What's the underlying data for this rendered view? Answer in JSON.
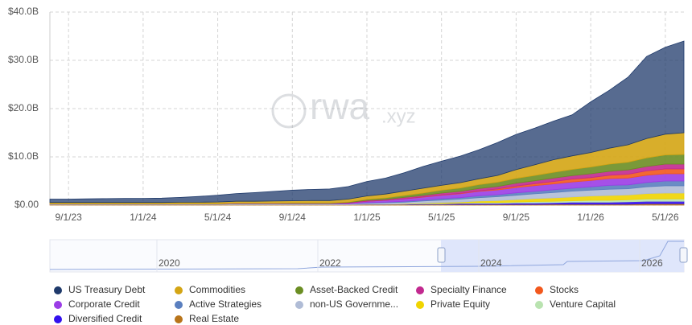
{
  "chart_data": {
    "type": "stacked_area",
    "watermark": "rwa",
    "watermark_suffix": ".xyz",
    "x": [
      "8/1/23",
      "9/1/23",
      "10/1/23",
      "11/1/23",
      "12/1/23",
      "1/1/24",
      "2/1/24",
      "3/1/24",
      "4/1/24",
      "5/1/24",
      "6/1/24",
      "7/1/24",
      "8/1/24",
      "9/1/24",
      "10/1/24",
      "11/1/24",
      "12/1/24",
      "1/1/25",
      "2/1/25",
      "3/1/25",
      "4/1/25",
      "5/1/25",
      "6/1/25",
      "7/1/25",
      "8/1/25",
      "9/1/25",
      "10/1/25",
      "11/1/25",
      "12/1/25",
      "1/1/26",
      "2/1/26",
      "3/1/26",
      "4/1/26",
      "5/1/26",
      "6/1/26"
    ],
    "xticks": [
      "9/1/23",
      "1/1/24",
      "5/1/24",
      "9/1/24",
      "1/1/25",
      "5/1/25",
      "9/1/25",
      "1/1/26",
      "5/1/26"
    ],
    "ylim": [
      0,
      40
    ],
    "yticks": [
      {
        "value": 0,
        "label": "$0.00"
      },
      {
        "value": 10,
        "label": "$10.0B"
      },
      {
        "value": 20,
        "label": "$20.0B"
      },
      {
        "value": 30,
        "label": "$30.0B"
      },
      {
        "value": 40,
        "label": "$40.0B"
      }
    ],
    "grid": true,
    "navigator_ticks": [
      2020,
      2022,
      2024,
      2026
    ],
    "series": [
      {
        "name": "US Treasury Debt",
        "color": "#1f3a6b",
        "values": [
          0.7,
          0.7,
          0.75,
          0.8,
          0.85,
          0.85,
          0.9,
          1.0,
          1.2,
          1.4,
          1.6,
          1.8,
          2.0,
          2.2,
          2.3,
          2.4,
          2.6,
          3.0,
          3.3,
          3.8,
          4.5,
          5.0,
          5.5,
          6.0,
          6.8,
          7.3,
          7.6,
          8.0,
          8.5,
          10.5,
          12,
          14,
          17,
          18,
          19
        ]
      },
      {
        "name": "Commodities",
        "color": "#d4a514",
        "values": [
          0.3,
          0.3,
          0.3,
          0.3,
          0.3,
          0.3,
          0.3,
          0.35,
          0.35,
          0.4,
          0.4,
          0.4,
          0.45,
          0.45,
          0.5,
          0.5,
          0.6,
          0.7,
          0.8,
          0.9,
          1.0,
          1.0,
          1.1,
          1.2,
          1.4,
          1.8,
          2.2,
          2.6,
          2.8,
          3.0,
          3.3,
          3.6,
          4.0,
          4.3,
          4.5
        ]
      },
      {
        "name": "Asset-Backed Credit",
        "color": "#6b8e23",
        "values": [
          0,
          0,
          0,
          0,
          0,
          0,
          0,
          0,
          0,
          0,
          0.05,
          0.05,
          0.05,
          0.1,
          0.1,
          0.1,
          0.1,
          0.2,
          0.3,
          0.4,
          0.5,
          0.6,
          0.7,
          0.8,
          0.9,
          1.0,
          1.1,
          1.2,
          1.3,
          1.4,
          1.5,
          1.6,
          1.8,
          1.9,
          2.0
        ]
      },
      {
        "name": "Specialty Finance",
        "color": "#c2298f",
        "values": [
          0,
          0,
          0,
          0,
          0,
          0,
          0,
          0,
          0,
          0,
          0,
          0,
          0,
          0,
          0,
          0,
          0.1,
          0.2,
          0.2,
          0.3,
          0.3,
          0.4,
          0.4,
          0.5,
          0.5,
          0.6,
          0.6,
          0.7,
          0.7,
          0.8,
          0.8,
          0.9,
          0.9,
          1.0,
          1.0
        ]
      },
      {
        "name": "Stocks",
        "color": "#f2581d",
        "values": [
          0,
          0,
          0,
          0,
          0,
          0,
          0,
          0,
          0,
          0,
          0,
          0,
          0,
          0,
          0,
          0,
          0,
          0,
          0,
          0,
          0.05,
          0.05,
          0.1,
          0.1,
          0.2,
          0.3,
          0.4,
          0.5,
          0.6,
          0.6,
          0.7,
          0.8,
          0.9,
          1.0,
          1.0
        ]
      },
      {
        "name": "Corporate Credit",
        "color": "#9b3de6",
        "values": [
          0.05,
          0.05,
          0.05,
          0.05,
          0.05,
          0.05,
          0.05,
          0.05,
          0.05,
          0.05,
          0.1,
          0.1,
          0.1,
          0.1,
          0.1,
          0.1,
          0.2,
          0.3,
          0.4,
          0.5,
          0.6,
          0.7,
          0.8,
          0.9,
          1.0,
          1.1,
          1.2,
          1.2,
          1.3,
          1.3,
          1.4,
          1.4,
          1.5,
          1.5,
          1.5
        ]
      },
      {
        "name": "Active Strategies",
        "color": "#5a7fbf",
        "values": [
          0,
          0,
          0,
          0,
          0,
          0,
          0,
          0,
          0,
          0,
          0,
          0,
          0,
          0,
          0,
          0,
          0,
          0.1,
          0.1,
          0.2,
          0.2,
          0.3,
          0.3,
          0.4,
          0.4,
          0.5,
          0.5,
          0.6,
          0.6,
          0.7,
          0.8,
          0.8,
          0.9,
          1.0,
          1.0
        ]
      },
      {
        "name": "non-US Governme...",
        "color": "#b0bcd6",
        "values": [
          0.1,
          0.1,
          0.1,
          0.1,
          0.1,
          0.1,
          0.1,
          0.1,
          0.1,
          0.1,
          0.15,
          0.15,
          0.15,
          0.15,
          0.15,
          0.15,
          0.15,
          0.2,
          0.3,
          0.3,
          0.4,
          0.5,
          0.6,
          0.7,
          0.8,
          0.9,
          1.0,
          1.1,
          1.2,
          1.2,
          1.3,
          1.3,
          1.4,
          1.5,
          1.5
        ]
      },
      {
        "name": "Private Equity",
        "color": "#f0d400",
        "values": [
          0,
          0,
          0,
          0,
          0,
          0,
          0,
          0,
          0,
          0,
          0,
          0,
          0,
          0,
          0,
          0,
          0,
          0.05,
          0.05,
          0.1,
          0.1,
          0.2,
          0.2,
          0.3,
          0.4,
          0.5,
          0.6,
          0.7,
          0.8,
          0.9,
          1.0,
          1.0,
          1.1,
          1.2,
          1.2
        ]
      },
      {
        "name": "Venture Capital",
        "color": "#b9e3b0",
        "values": [
          0,
          0,
          0,
          0,
          0,
          0,
          0,
          0,
          0,
          0,
          0,
          0,
          0,
          0,
          0,
          0,
          0,
          0,
          0,
          0,
          0.1,
          0.1,
          0.1,
          0.2,
          0.2,
          0.2,
          0.3,
          0.3,
          0.3,
          0.4,
          0.4,
          0.4,
          0.5,
          0.5,
          0.5
        ]
      },
      {
        "name": "Diversified Credit",
        "color": "#3311ee",
        "values": [
          0,
          0,
          0,
          0,
          0,
          0,
          0,
          0,
          0,
          0,
          0,
          0,
          0,
          0,
          0,
          0,
          0,
          0.05,
          0.05,
          0.1,
          0.1,
          0.1,
          0.2,
          0.2,
          0.2,
          0.3,
          0.3,
          0.3,
          0.4,
          0.4,
          0.4,
          0.5,
          0.5,
          0.5,
          0.5
        ]
      },
      {
        "name": "Real Estate",
        "color": "#b8741a",
        "values": [
          0.1,
          0.1,
          0.1,
          0.1,
          0.1,
          0.1,
          0.1,
          0.1,
          0.1,
          0.1,
          0.1,
          0.1,
          0.1,
          0.1,
          0.1,
          0.1,
          0.1,
          0.1,
          0.1,
          0.1,
          0.15,
          0.15,
          0.15,
          0.15,
          0.15,
          0.15,
          0.15,
          0.2,
          0.2,
          0.2,
          0.2,
          0.2,
          0.3,
          0.3,
          0.3
        ]
      }
    ]
  }
}
